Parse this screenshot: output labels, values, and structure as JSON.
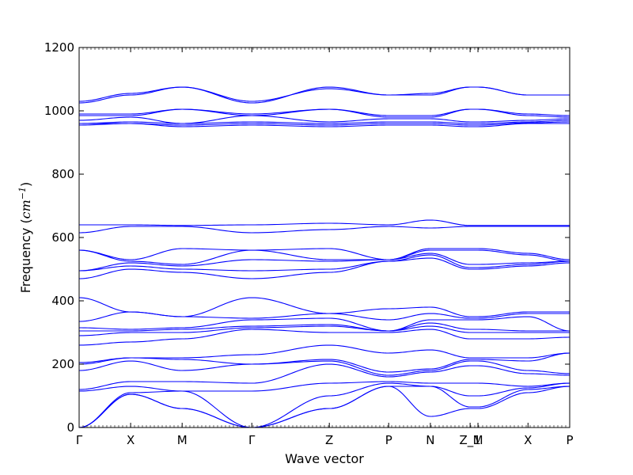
{
  "chart_data": {
    "type": "line",
    "title": "",
    "xlabel": "Wave vector",
    "ylabel": "Frequency ($cm^{-1}$)",
    "ylabel_display": {
      "prefix": "Frequency (",
      "unit": "cm",
      "exponent": "−1",
      "suffix": ")"
    },
    "ylim": [
      0,
      1200
    ],
    "yticks": [
      0,
      200,
      400,
      600,
      800,
      1000,
      1200
    ],
    "ytick_labels": [
      "0",
      "200",
      "400",
      "600",
      "800",
      "1000",
      "1200"
    ],
    "xlim": [
      0,
      10
    ],
    "high_symmetry_points": [
      {
        "label": "Γ",
        "x": 0
      },
      {
        "label": "X",
        "x": 1.05
      },
      {
        "label": "M",
        "x": 2.1
      },
      {
        "label": "Γ",
        "x": 3.52
      },
      {
        "label": "Z",
        "x": 5.1
      },
      {
        "label": "P",
        "x": 6.31
      },
      {
        "label": "N",
        "x": 7.16
      },
      {
        "label": "Z_1",
        "x": 7.97
      },
      {
        "label": "M",
        "x": 8.13
      },
      {
        "label": "X",
        "x": 9.15
      },
      {
        "label": "P",
        "x": 10
      }
    ],
    "series": [
      {
        "values": [
          0,
          105,
          60,
          0,
          60,
          130,
          35,
          60,
          60,
          110,
          130
        ]
      },
      {
        "values": [
          0,
          105,
          60,
          0,
          60,
          130,
          130,
          65,
          65,
          120,
          130
        ]
      },
      {
        "values": [
          0,
          110,
          115,
          0,
          100,
          140,
          130,
          100,
          100,
          125,
          140
        ]
      },
      {
        "values": [
          115,
          130,
          115,
          115,
          140,
          145,
          140,
          140,
          140,
          130,
          140
        ]
      },
      {
        "values": [
          120,
          145,
          145,
          140,
          200,
          160,
          175,
          195,
          195,
          170,
          165
        ]
      },
      {
        "values": [
          180,
          210,
          180,
          200,
          210,
          165,
          180,
          210,
          210,
          180,
          170
        ]
      },
      {
        "values": [
          200,
          220,
          215,
          200,
          215,
          175,
          185,
          215,
          215,
          210,
          235
        ]
      },
      {
        "values": [
          205,
          220,
          220,
          230,
          260,
          235,
          245,
          220,
          220,
          220,
          235
        ]
      },
      {
        "values": [
          260,
          270,
          280,
          310,
          300,
          300,
          310,
          280,
          280,
          280,
          285
        ]
      },
      {
        "values": [
          290,
          300,
          300,
          315,
          320,
          305,
          320,
          300,
          300,
          300,
          300
        ]
      },
      {
        "values": [
          305,
          305,
          310,
          320,
          325,
          305,
          330,
          310,
          310,
          305,
          305
        ]
      },
      {
        "values": [
          315,
          310,
          315,
          340,
          345,
          305,
          340,
          340,
          340,
          350,
          305
        ]
      },
      {
        "values": [
          335,
          365,
          350,
          345,
          360,
          340,
          360,
          345,
          345,
          360,
          360
        ]
      },
      {
        "values": [
          410,
          365,
          350,
          410,
          360,
          375,
          380,
          350,
          350,
          365,
          365
        ]
      },
      {
        "values": [
          470,
          500,
          490,
          470,
          490,
          525,
          535,
          500,
          500,
          510,
          520
        ]
      },
      {
        "values": [
          495,
          510,
          500,
          495,
          500,
          525,
          545,
          505,
          505,
          515,
          525
        ]
      },
      {
        "values": [
          495,
          520,
          510,
          530,
          525,
          530,
          550,
          515,
          515,
          520,
          525
        ]
      },
      {
        "values": [
          560,
          525,
          515,
          560,
          530,
          530,
          560,
          560,
          560,
          545,
          525
        ]
      },
      {
        "values": [
          560,
          530,
          565,
          560,
          565,
          530,
          565,
          565,
          565,
          550,
          530
        ]
      },
      {
        "values": [
          615,
          635,
          635,
          615,
          625,
          635,
          630,
          635,
          635,
          635,
          635
        ]
      },
      {
        "values": [
          640,
          640,
          638,
          640,
          645,
          640,
          655,
          638,
          638,
          638,
          638
        ]
      },
      {
        "values": [
          955,
          960,
          950,
          955,
          950,
          955,
          955,
          950,
          950,
          960,
          960
        ]
      },
      {
        "values": [
          960,
          960,
          955,
          960,
          955,
          960,
          960,
          955,
          955,
          962,
          965
        ]
      },
      {
        "values": [
          960,
          965,
          960,
          965,
          960,
          965,
          965,
          960,
          960,
          965,
          970
        ]
      },
      {
        "values": [
          970,
          980,
          960,
          985,
          965,
          975,
          975,
          965,
          965,
          970,
          975
        ]
      },
      {
        "values": [
          985,
          985,
          1005,
          985,
          1005,
          980,
          980,
          1005,
          1005,
          985,
          980
        ]
      },
      {
        "values": [
          990,
          990,
          1005,
          990,
          1005,
          985,
          985,
          1005,
          1005,
          990,
          985
        ]
      },
      {
        "values": [
          1025,
          1050,
          1075,
          1025,
          1075,
          1050,
          1055,
          1075,
          1075,
          1050,
          1050
        ]
      },
      {
        "values": [
          1030,
          1055,
          1075,
          1030,
          1070,
          1050,
          1050,
          1075,
          1075,
          1050,
          1050
        ]
      }
    ],
    "grid": false,
    "legend": "none",
    "colors": {
      "line": "#0000ff",
      "axis": "#000000",
      "background": "#ffffff"
    }
  }
}
